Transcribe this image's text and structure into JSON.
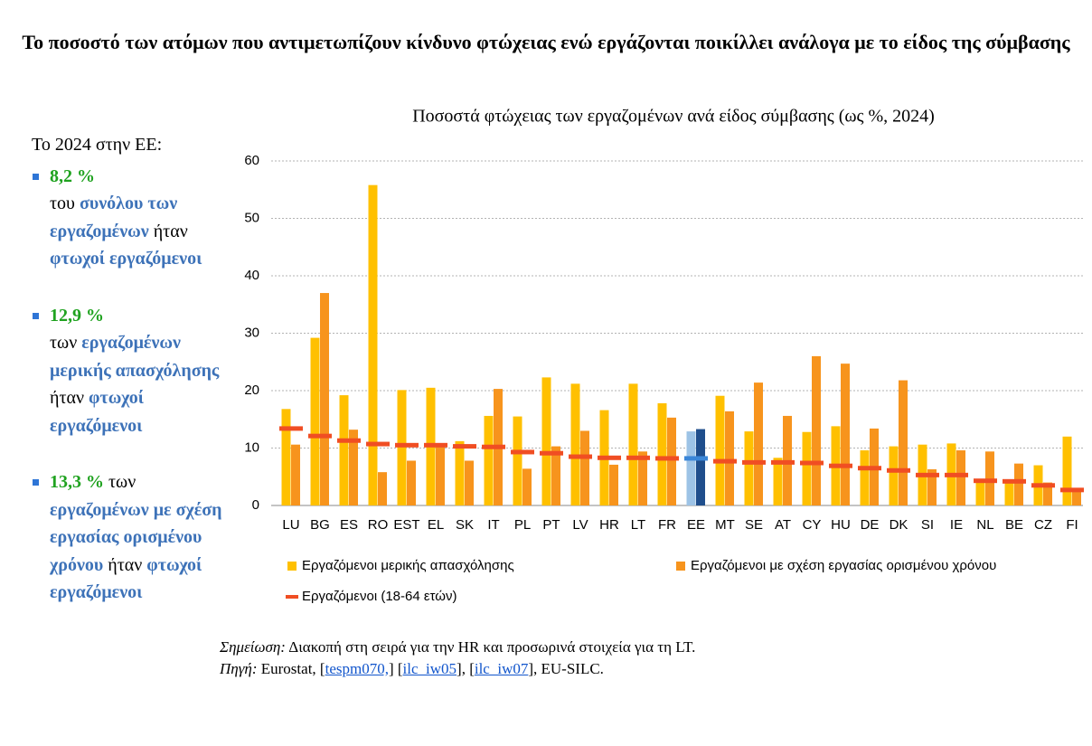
{
  "header": {
    "title": "Το ποσοστό των ατόμων που αντιμετωπίζουν κίνδυνο φτώχειας ενώ εργάζονται ποικίλλει ανάλογα με το είδος της σύμβασης"
  },
  "sidebar": {
    "intro": "Το 2024 στην ΕΕ:",
    "items": [
      {
        "runs": [
          "8,2 %",
          "του ",
          "συνόλου των εργαζομένων",
          " ήταν ",
          "φτωχοί εργαζόμενοι"
        ]
      },
      {
        "runs": [
          "12,9 %",
          "των ",
          "εργαζομένων μερικής απασχόλησης",
          " ήταν ",
          "φτωχοί εργαζόμενοι"
        ]
      },
      {
        "runs": [
          "13,3 %",
          " των ",
          "εργαζομένων με σχέση εργασίας ορισμένου χρόνου",
          " ήταν ",
          "φτωχοί εργαζόμενοι"
        ]
      }
    ]
  },
  "chart_data": {
    "type": "bar",
    "title": "Ποσοστά φτώχειας των εργαζομένων ανά είδος σύμβασης (ως %, 2024)",
    "categories": [
      "LU",
      "BG",
      "ES",
      "RO",
      "EST",
      "EL",
      "SK",
      "IT",
      "PL",
      "PT",
      "LV",
      "HR",
      "LT",
      "FR",
      "EE",
      "MT",
      "SE",
      "AT",
      "CY",
      "HU",
      "DE",
      "DK",
      "SI",
      "IE",
      "NL",
      "BE",
      "CZ",
      "FI"
    ],
    "highlight_category": "EE",
    "series": [
      {
        "name": "Εργαζόμενοι μερικής απασχόλησης",
        "mark": "bar",
        "color": "#ffc000",
        "highlight_color": "#9dc3e6",
        "values": [
          16.8,
          29.2,
          19.2,
          55.8,
          20.1,
          20.5,
          11.2,
          15.6,
          15.5,
          22.3,
          21.2,
          16.6,
          21.2,
          17.8,
          12.9,
          19.1,
          12.9,
          8.3,
          12.8,
          13.8,
          9.6,
          10.3,
          10.6,
          10.8,
          4.4,
          4.5,
          7.0,
          12.0
        ]
      },
      {
        "name": "Εργαζόμενοι με σχέση εργασίας ορισμένου χρόνου",
        "mark": "bar",
        "color": "#f7941d",
        "highlight_color": "#1f4e8c",
        "values": [
          10.6,
          37.0,
          13.2,
          5.8,
          7.8,
          10.4,
          7.8,
          20.3,
          6.4,
          10.3,
          13.0,
          7.1,
          9.4,
          15.3,
          13.3,
          16.4,
          21.4,
          15.6,
          26.0,
          24.7,
          13.4,
          21.8,
          6.3,
          9.6,
          9.4,
          7.3,
          4.0,
          2.5
        ]
      },
      {
        "name": "Εργαζόμενοι (18-64 ετών)",
        "mark": "dash",
        "color": "#f04e23",
        "highlight_color": "#3a86d8",
        "values": [
          13.4,
          12.1,
          11.3,
          10.7,
          10.5,
          10.5,
          10.3,
          10.2,
          9.3,
          9.1,
          8.5,
          8.3,
          8.3,
          8.2,
          8.2,
          7.7,
          7.5,
          7.5,
          7.4,
          6.9,
          6.5,
          6.1,
          5.3,
          5.3,
          4.3,
          4.2,
          3.5,
          2.7
        ]
      }
    ],
    "ylim": [
      0,
      60
    ],
    "yticks": [
      0,
      10,
      20,
      30,
      40,
      50,
      60
    ],
    "grid": true
  },
  "notes": {
    "note_label": "Σημείωση:",
    "note_text": " Διακοπή στη σειρά για την HR και προσωρινά στοιχεία για τη LT.",
    "source_label": "Πηγή:",
    "source_parts": [
      {
        "text": " Eurostat, ["
      },
      {
        "text": "tespm070,",
        "link": true
      },
      {
        "text": "] ["
      },
      {
        "text": "ilc_iw05",
        "link": true
      },
      {
        "text": "], ["
      },
      {
        "text": "ilc_iw07",
        "link": true
      },
      {
        "text": "], EU-SILC."
      }
    ]
  }
}
